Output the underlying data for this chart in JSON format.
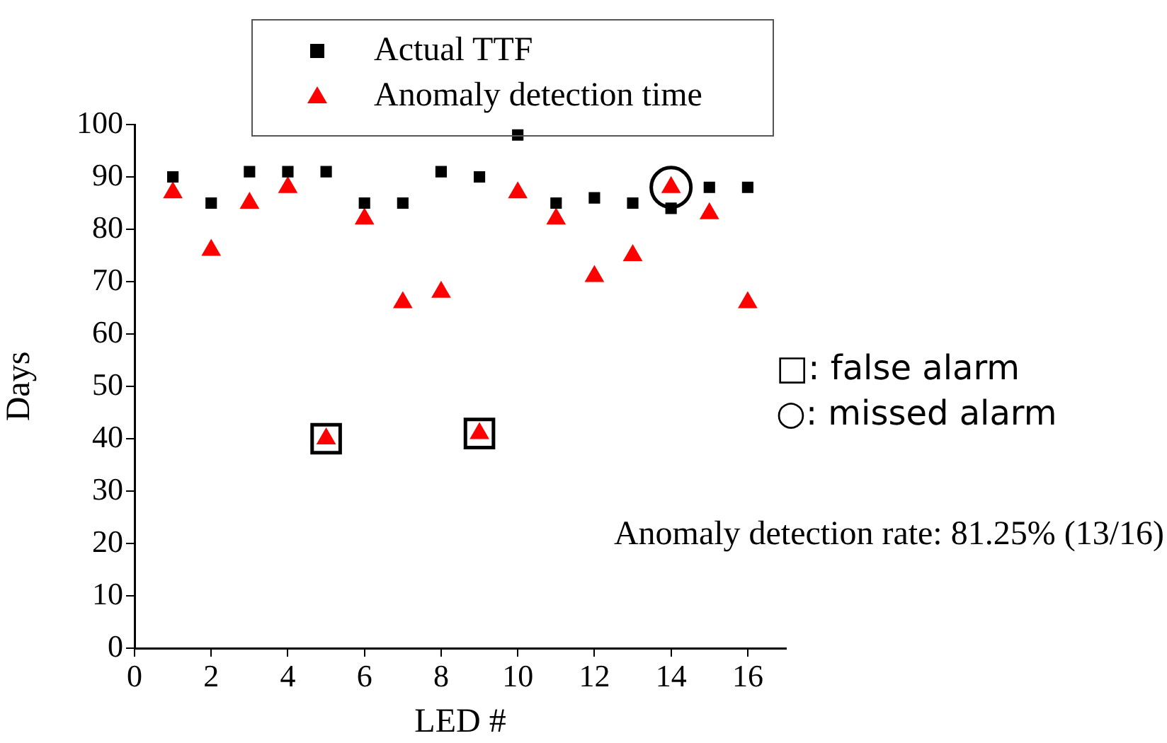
{
  "chart_data": {
    "type": "scatter",
    "xlabel": "LED #",
    "ylabel": "Days",
    "x": [
      1,
      2,
      3,
      4,
      5,
      6,
      7,
      8,
      9,
      10,
      11,
      12,
      13,
      14,
      15,
      16
    ],
    "xlim": [
      0,
      17
    ],
    "xticks": [
      0,
      2,
      4,
      6,
      8,
      10,
      12,
      14,
      16
    ],
    "ylim": [
      0,
      100
    ],
    "yticks": [
      0,
      10,
      20,
      30,
      40,
      50,
      60,
      70,
      80,
      90,
      100
    ],
    "grid": false,
    "legend": "top",
    "series": [
      {
        "name": "Actual TTF",
        "color": "#000000",
        "marker": "square",
        "values": [
          90,
          85,
          91,
          91,
          91,
          85,
          85,
          91,
          90,
          98,
          85,
          86,
          85,
          84,
          88,
          88
        ]
      },
      {
        "name": "Anomaly detection time",
        "color": "#ff0000",
        "marker": "triangle",
        "values": [
          87,
          76,
          85,
          88,
          40,
          82,
          66,
          68,
          41,
          87,
          82,
          71,
          75,
          88,
          83,
          66
        ]
      },
      {
        "color": "#000000",
        "marker": "square",
        "x": [
          5,
          9
        ],
        "values": [
          40,
          41
        ]
      },
      {
        "color": "#000000",
        "marker": "circle",
        "x": [
          14
        ],
        "values": [
          88
        ]
      }
    ],
    "annotations": [
      "□: false alarm",
      "○: missed alarm",
      "Anomaly detection rate: 81.25% (13/16)"
    ]
  }
}
